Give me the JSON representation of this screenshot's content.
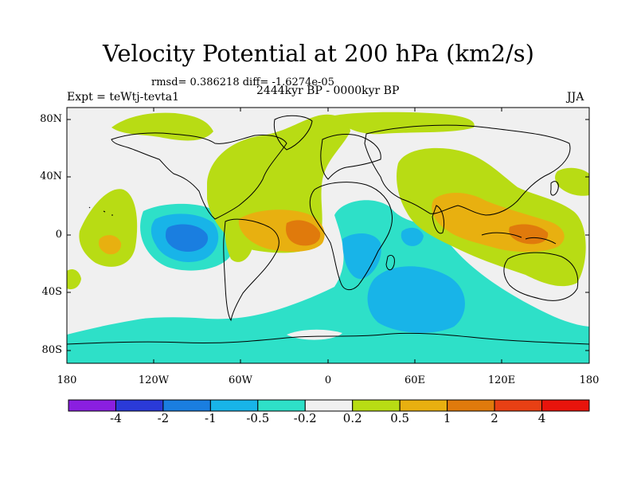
{
  "header": {
    "title": "Velocity Potential at 200 hPa (km2/s)",
    "stats": "rmsd= 0.386218 diff= -1.6274e-05",
    "period": "2444kyr BP - 0000kyr BP",
    "experiment": "Expt = teWtj-tevta1",
    "season": "JJA"
  },
  "axes": {
    "lat_labels": [
      "80N",
      "40N",
      "0",
      "40S",
      "80S"
    ],
    "lon_labels": [
      "180",
      "120W",
      "60W",
      "0",
      "60E",
      "120E",
      "180"
    ]
  },
  "colorbar": {
    "labels": [
      "-4",
      "-2",
      "-1",
      "-0.5",
      "-0.2",
      "0.2",
      "0.5",
      "1",
      "2",
      "4"
    ],
    "colors": [
      "#8a1fe0",
      "#2a3ad8",
      "#1a7ee0",
      "#18b4e8",
      "#2ee0c8",
      "#f0f0f0",
      "#b8dc14",
      "#e8b010",
      "#e07a0c",
      "#e84014",
      "#e8140c"
    ]
  },
  "map_colors": {
    "land_outline": "#000000",
    "neg_light": "#2ee0c8",
    "neg_mid": "#18b4e8",
    "neg_strong": "#1a7ee0",
    "pos_light": "#b8dc14",
    "pos_mid": "#e8b010",
    "pos_strong": "#e07a0c",
    "neutral": "#f0f0f0"
  }
}
